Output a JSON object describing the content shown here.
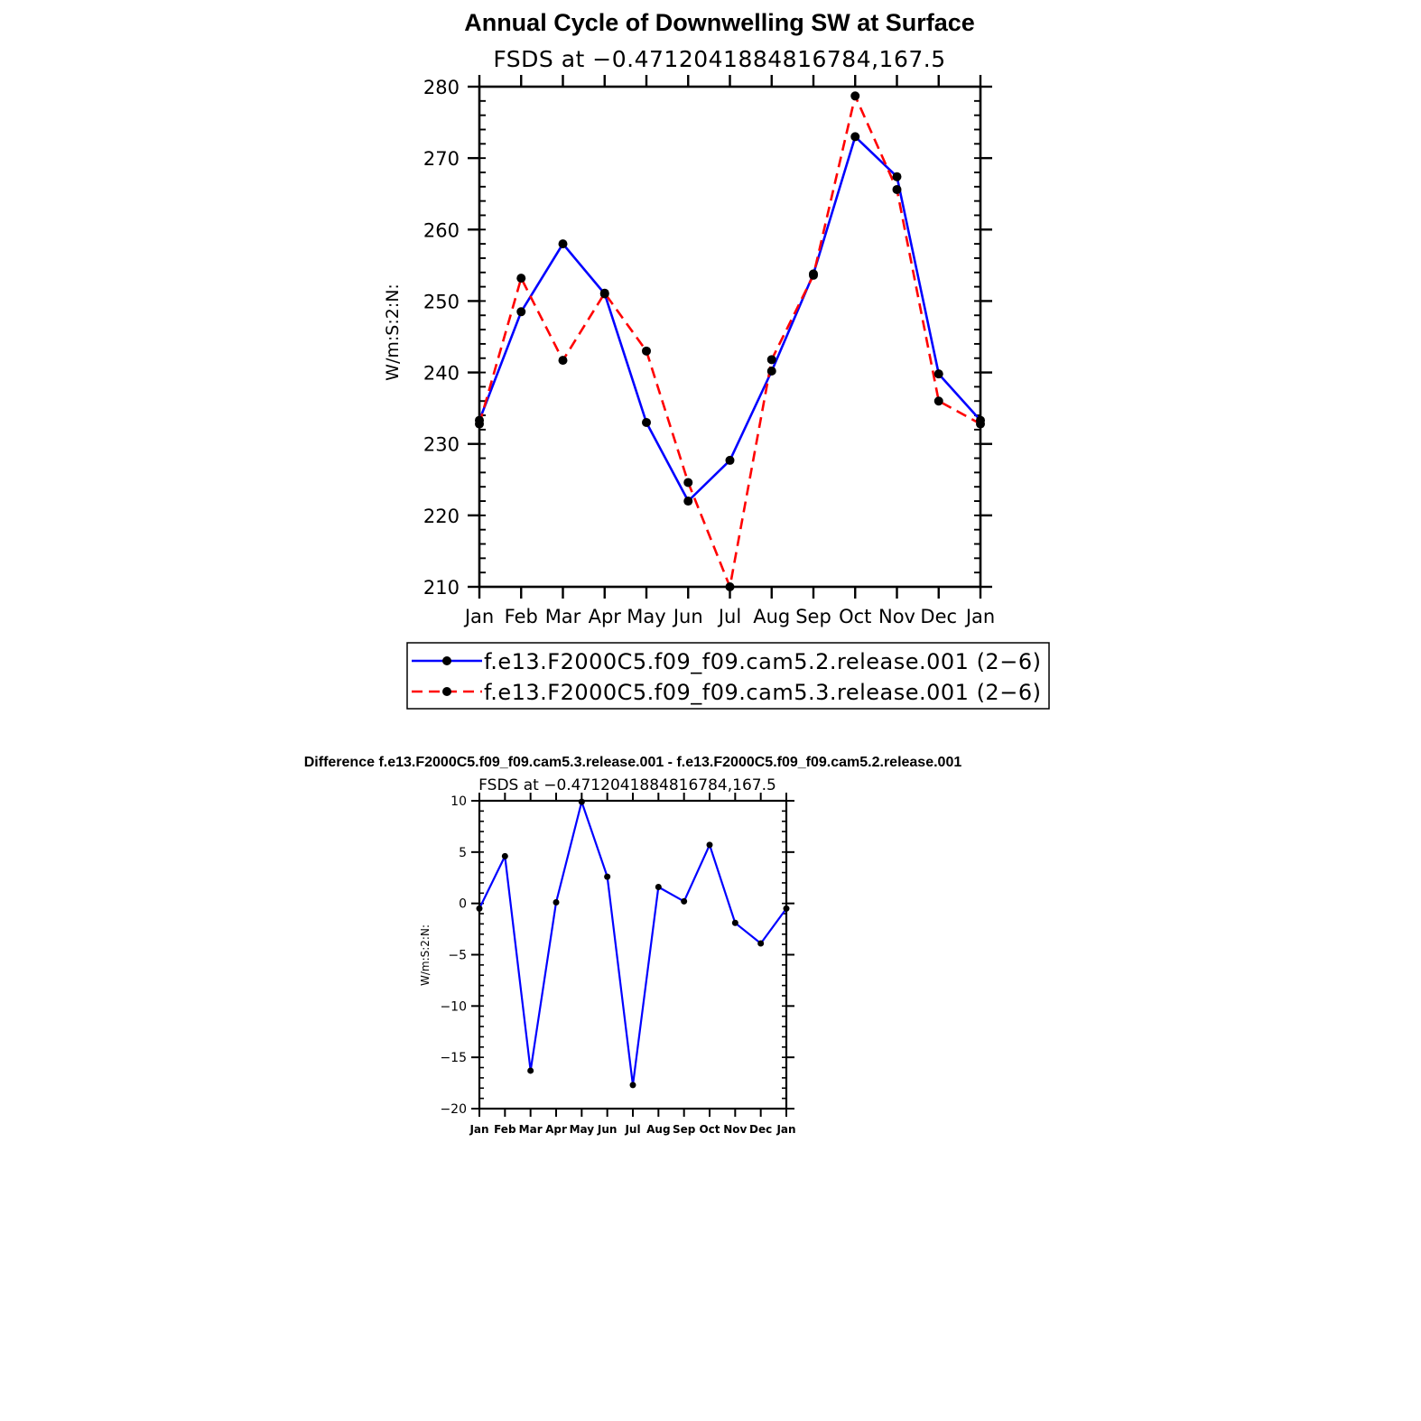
{
  "chart_data": [
    {
      "type": "line",
      "title": "Annual Cycle of Downwelling SW at Surface",
      "subtitle": "FSDS at −0.4712041884816784,167.5",
      "ylabel": "W/m:S:2:N:",
      "xlabel": "",
      "categories": [
        "Jan",
        "Feb",
        "Mar",
        "Apr",
        "May",
        "Jun",
        "Jul",
        "Aug",
        "Sep",
        "Oct",
        "Nov",
        "Dec",
        "Jan"
      ],
      "ylim": [
        210,
        280
      ],
      "yticks": [
        210,
        220,
        230,
        240,
        250,
        260,
        270,
        280
      ],
      "grid": false,
      "legend": "bottom",
      "series": [
        {
          "name": "f.e13.F2000C5.f09_f09.cam5.2.release.001 (2−6)",
          "color": "#0000ff",
          "dash": "solid",
          "values": [
            233.3,
            248.5,
            258.0,
            251.0,
            233.0,
            222.0,
            227.7,
            240.2,
            253.8,
            273.0,
            267.4,
            239.8,
            233.3
          ]
        },
        {
          "name": "f.e13.F2000C5.f09_f09.cam5.3.release.001 (2−6)",
          "color": "#ff0000",
          "dash": "dashed",
          "values": [
            232.8,
            253.2,
            241.7,
            251.1,
            243.0,
            224.6,
            210.0,
            241.8,
            253.6,
            278.7,
            265.6,
            236.0,
            232.8
          ]
        }
      ]
    },
    {
      "type": "line",
      "title": "Difference f.e13.F2000C5.f09_f09.cam5.3.release.001 - f.e13.F2000C5.f09_f09.cam5.2.release.001",
      "subtitle": "FSDS at −0.4712041884816784,167.5",
      "ylabel": "W/m:S:2:N:",
      "xlabel": "",
      "categories": [
        "Jan",
        "Feb",
        "Mar",
        "Apr",
        "May",
        "Jun",
        "Jul",
        "Aug",
        "Sep",
        "Oct",
        "Nov",
        "Dec",
        "Jan"
      ],
      "ylim": [
        -20,
        10
      ],
      "yticks": [
        -20,
        -15,
        -10,
        -5,
        0,
        5,
        10
      ],
      "ytick_labels": [
        "−20",
        "−15",
        "−10",
        "−5",
        "0",
        "5",
        "10"
      ],
      "grid": false,
      "series": [
        {
          "color": "#0000ff",
          "dash": "solid",
          "values": [
            -0.5,
            4.6,
            -16.3,
            0.1,
            9.9,
            2.6,
            -17.7,
            1.6,
            0.2,
            5.7,
            -1.9,
            -3.9,
            -0.5
          ]
        }
      ]
    }
  ]
}
